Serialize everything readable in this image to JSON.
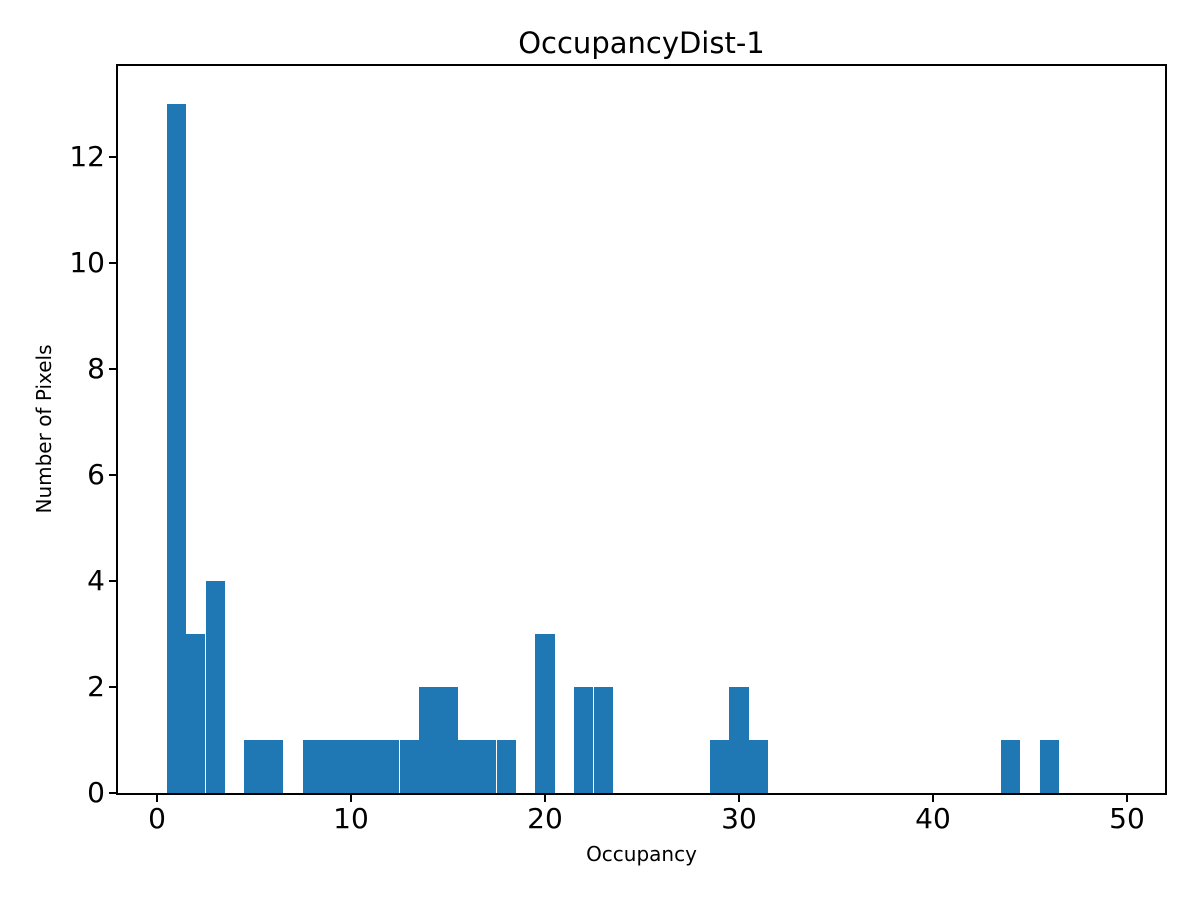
{
  "chart_data": {
    "type": "bar",
    "subtype": "histogram",
    "title": "OccupancyDist-1",
    "xlabel": "Occupancy",
    "ylabel": "Number of Pixels",
    "bar_color": "#1f77b4",
    "axis_color": "#000000",
    "text_color": "#000000",
    "background_color": "#ffffff",
    "grid": false,
    "legend": false,
    "bin_width": 1.0,
    "bin_centers": [
      1,
      2,
      3,
      5,
      6,
      8,
      9,
      10,
      11,
      12,
      13,
      14,
      15,
      16,
      17,
      18,
      20,
      22,
      23,
      29,
      30,
      31,
      44,
      46
    ],
    "counts": [
      13,
      3,
      4,
      1,
      1,
      1,
      1,
      1,
      1,
      1,
      1,
      2,
      2,
      1,
      1,
      1,
      3,
      2,
      2,
      1,
      2,
      1,
      1,
      1
    ],
    "x_ticks": [
      0,
      10,
      20,
      30,
      40,
      50
    ],
    "y_ticks": [
      0,
      2,
      4,
      6,
      8,
      10,
      12
    ],
    "xlim": [
      -2.01,
      51.96
    ],
    "ylim": [
      0,
      13.72
    ]
  }
}
